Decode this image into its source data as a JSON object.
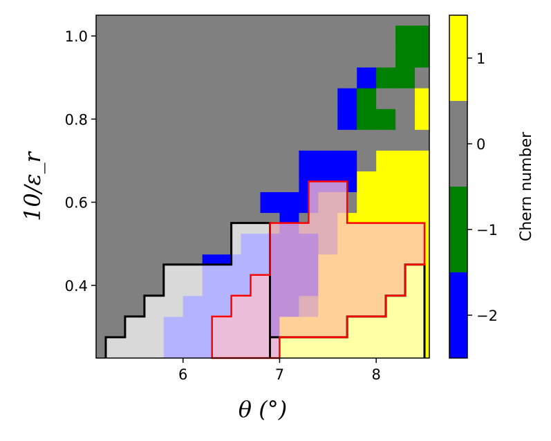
{
  "chart_data": {
    "type": "heatmap",
    "xlabel": "θ (°)",
    "ylabel": "10/ε_r",
    "xlim": [
      5.1,
      8.55
    ],
    "ylim": [
      0.225,
      1.05
    ],
    "x_ticks": [
      6,
      7,
      8
    ],
    "x_tick_labels": [
      "6",
      "7",
      "8"
    ],
    "y_ticks": [
      0.4,
      0.6,
      0.8,
      1.0
    ],
    "y_tick_labels": [
      "0.4",
      "0.6",
      "0.8",
      "1.0"
    ],
    "x_centers": [
      5.3,
      5.5,
      5.7,
      5.9,
      6.1,
      6.3,
      6.5,
      6.7,
      6.9,
      7.1,
      7.3,
      7.5,
      7.7,
      7.9,
      8.1,
      8.3,
      8.5
    ],
    "y_centers": [
      0.25,
      0.3,
      0.35,
      0.4,
      0.45,
      0.5,
      0.55,
      0.6,
      0.65,
      0.7,
      0.75,
      0.8,
      0.85,
      0.9,
      0.95,
      1.0
    ],
    "chern_grid_note": "rows ordered by y_centers ascending, columns by x_centers ascending",
    "chern_grid": [
      [
        0,
        0,
        0,
        -2,
        -2,
        -2,
        -2,
        -2,
        -2,
        1,
        1,
        1,
        1,
        1,
        1,
        1,
        1
      ],
      [
        0,
        0,
        0,
        -2,
        -2,
        -2,
        -2,
        -2,
        -2,
        1,
        1,
        1,
        1,
        1,
        1,
        1,
        1
      ],
      [
        0,
        0,
        0,
        0,
        -2,
        -2,
        -2,
        -2,
        -2,
        -2,
        0,
        1,
        1,
        1,
        1,
        1,
        1
      ],
      [
        0,
        0,
        0,
        0,
        0,
        -2,
        -2,
        -2,
        -2,
        -2,
        -2,
        1,
        1,
        1,
        1,
        1,
        1
      ],
      [
        0,
        0,
        0,
        0,
        0,
        -2,
        -2,
        -2,
        -2,
        -2,
        -2,
        1,
        1,
        1,
        1,
        1,
        1
      ],
      [
        0,
        0,
        0,
        0,
        0,
        0,
        0,
        -2,
        -2,
        -2,
        -2,
        0,
        1,
        1,
        1,
        1,
        1
      ],
      [
        0,
        0,
        0,
        0,
        0,
        0,
        0,
        0,
        0,
        -2,
        0,
        0,
        1,
        1,
        1,
        1,
        1
      ],
      [
        0,
        0,
        0,
        0,
        0,
        0,
        0,
        0,
        -2,
        -2,
        -2,
        0,
        0,
        1,
        1,
        1,
        1
      ],
      [
        0,
        0,
        0,
        0,
        0,
        0,
        0,
        0,
        0,
        0,
        -2,
        -2,
        -2,
        1,
        1,
        1,
        1
      ],
      [
        0,
        0,
        0,
        0,
        0,
        0,
        0,
        0,
        0,
        0,
        -2,
        -2,
        -2,
        0,
        1,
        1,
        1
      ],
      [
        0,
        0,
        0,
        0,
        0,
        0,
        0,
        0,
        0,
        0,
        0,
        0,
        0,
        0,
        0,
        0,
        0
      ],
      [
        0,
        0,
        0,
        0,
        0,
        0,
        0,
        0,
        0,
        0,
        0,
        0,
        -2,
        -1,
        -1,
        0,
        1
      ],
      [
        0,
        0,
        0,
        0,
        0,
        0,
        0,
        0,
        0,
        0,
        0,
        0,
        -2,
        -1,
        0,
        0,
        1
      ],
      [
        0,
        0,
        0,
        0,
        0,
        0,
        0,
        0,
        0,
        0,
        0,
        0,
        0,
        -2,
        -1,
        -1,
        0
      ],
      [
        0,
        0,
        0,
        0,
        0,
        0,
        0,
        0,
        0,
        0,
        0,
        0,
        0,
        0,
        0,
        -1,
        -1
      ],
      [
        0,
        0,
        0,
        0,
        0,
        0,
        0,
        0,
        0,
        0,
        0,
        0,
        0,
        0,
        0,
        -1,
        -1
      ]
    ],
    "colorbar": {
      "label": "Chern number",
      "levels": [
        -2,
        -1,
        0,
        1
      ],
      "tick_labels": [
        "−2",
        "−1",
        "0",
        "1"
      ],
      "colors": [
        "#0000ff",
        "#008000",
        "#808080",
        "#ffff00"
      ]
    },
    "overlay": {
      "fill_opacity": 0.7,
      "black_region": {
        "outline_color": "#000000",
        "fill_color": "#ffffff",
        "outline_vertices": [
          [
            5.2,
            0.225
          ],
          [
            5.2,
            0.275
          ],
          [
            5.4,
            0.275
          ],
          [
            5.4,
            0.325
          ],
          [
            5.6,
            0.325
          ],
          [
            5.6,
            0.375
          ],
          [
            5.8,
            0.375
          ],
          [
            5.8,
            0.45
          ],
          [
            6.5,
            0.45
          ],
          [
            6.5,
            0.55
          ],
          [
            6.9,
            0.55
          ],
          [
            6.9,
            0.225
          ]
        ]
      },
      "red_region": {
        "outline_color": "#ff0000",
        "fill_color": "#ffc0cb",
        "outline_vertices": [
          [
            6.3,
            0.225
          ],
          [
            6.3,
            0.325
          ],
          [
            6.5,
            0.325
          ],
          [
            6.5,
            0.375
          ],
          [
            6.7,
            0.375
          ],
          [
            6.7,
            0.425
          ],
          [
            6.9,
            0.425
          ],
          [
            6.9,
            0.55
          ],
          [
            7.3,
            0.55
          ],
          [
            7.3,
            0.65
          ],
          [
            7.7,
            0.65
          ],
          [
            7.7,
            0.55
          ],
          [
            8.5,
            0.55
          ],
          [
            8.5,
            0.45
          ],
          [
            8.3,
            0.45
          ],
          [
            8.3,
            0.375
          ],
          [
            8.1,
            0.375
          ],
          [
            8.1,
            0.325
          ],
          [
            7.7,
            0.325
          ],
          [
            7.7,
            0.275
          ],
          [
            7.0,
            0.275
          ],
          [
            7.0,
            0.225
          ]
        ]
      },
      "yellow_region": {
        "outline_color": "#000000",
        "outline_vertices": [
          [
            6.9,
            0.225
          ],
          [
            6.9,
            0.275
          ],
          [
            7.7,
            0.275
          ],
          [
            7.7,
            0.325
          ],
          [
            8.1,
            0.325
          ],
          [
            8.1,
            0.375
          ],
          [
            8.3,
            0.375
          ],
          [
            8.3,
            0.45
          ],
          [
            8.5,
            0.45
          ],
          [
            8.5,
            0.225
          ]
        ]
      }
    }
  }
}
